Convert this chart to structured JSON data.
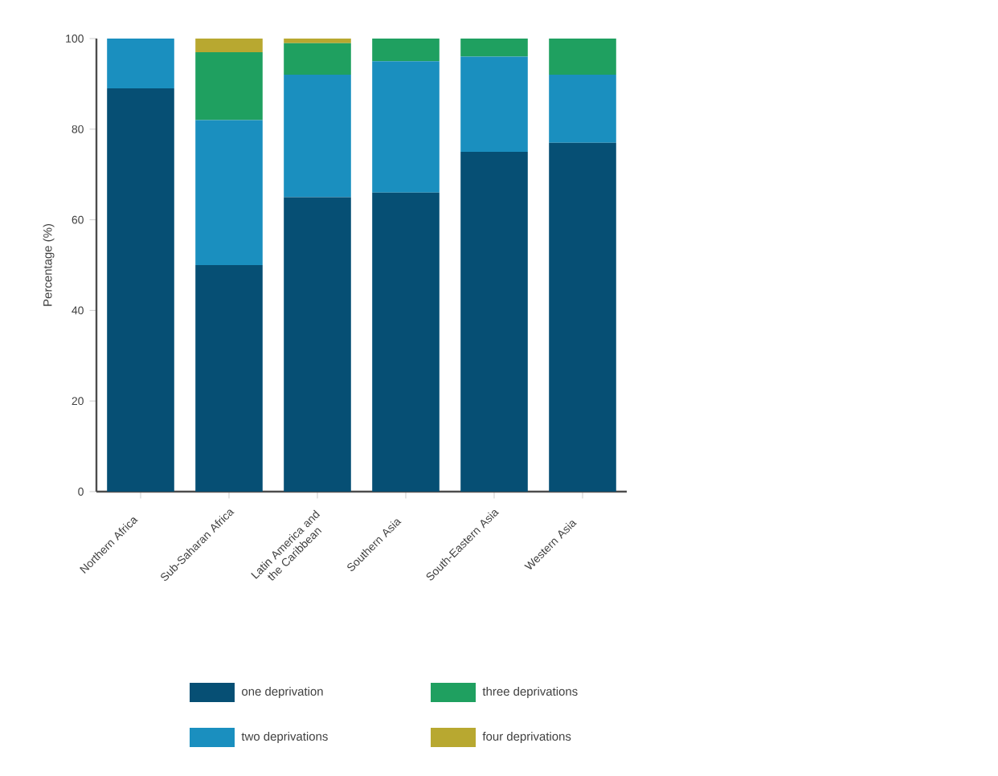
{
  "chart_data": {
    "type": "bar",
    "stacked": true,
    "ylabel": "Percentage (%)",
    "categories": [
      "Northern Africa",
      "Sub-Saharan Africa",
      "Latin America and the Caribbean",
      "Southern Asia",
      "South-Eastern Asia",
      "Western Asia"
    ],
    "series": [
      {
        "name": "one deprivation",
        "color": "#064f74",
        "values": [
          89,
          50,
          65,
          66,
          75,
          77
        ]
      },
      {
        "name": "two deprivations",
        "color": "#1a8fbf",
        "values": [
          11,
          32,
          27,
          29,
          21,
          15
        ]
      },
      {
        "name": "three deprivations",
        "color": "#1fa060",
        "values": [
          0,
          15,
          7,
          5,
          4,
          8
        ]
      },
      {
        "name": "four deprivations",
        "color": "#b8a830",
        "values": [
          0,
          3,
          1,
          0,
          0,
          0
        ]
      }
    ],
    "ylim": [
      0,
      100
    ],
    "yticks": [
      0,
      20,
      40,
      60,
      80,
      100
    ],
    "grid": false,
    "legend": "bottom"
  }
}
